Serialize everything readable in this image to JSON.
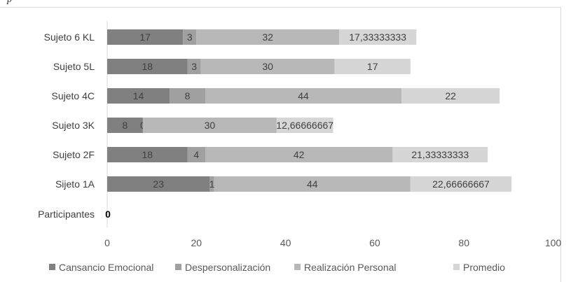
{
  "top_text": "p",
  "chart_data": {
    "type": "bar",
    "orientation": "horizontal",
    "stacked": true,
    "categories": [
      "Sijeto 1A",
      "Sujeto 2F",
      "Sujeto 3K",
      "Sujeto 4C",
      "Sujeto 5L",
      "Sujeto 6 KL",
      "Participantes"
    ],
    "series": [
      {
        "name": "Cansancio Emocional",
        "color": "#808080",
        "values": [
          23,
          18,
          8,
          14,
          18,
          17,
          0
        ],
        "labels": [
          "23",
          "18",
          "8",
          "14",
          "18",
          "17",
          "0"
        ]
      },
      {
        "name": "Despersonalización",
        "color": "#a0a0a0",
        "values": [
          1,
          4,
          0,
          8,
          3,
          3,
          0
        ],
        "labels": [
          "1",
          "4",
          "0",
          "8",
          "3",
          "3",
          ""
        ]
      },
      {
        "name": "Realización Personal",
        "color": "#b8b8b8",
        "values": [
          44,
          42,
          30,
          44,
          30,
          32,
          0
        ],
        "labels": [
          "44",
          "42",
          "30",
          "44",
          "30",
          "32",
          ""
        ]
      },
      {
        "name": "Promedio",
        "color": "#d6d6d6",
        "values": [
          22.66666667,
          21.33333333,
          12.66666667,
          22,
          17,
          17.33333333,
          0
        ],
        "labels": [
          "22,66666667",
          "21,33333333",
          "12,66666667",
          "22",
          "17",
          "17,33333333",
          ""
        ]
      }
    ],
    "xlim": [
      0,
      100
    ],
    "xticks": [
      "0",
      "20",
      "40",
      "60",
      "80",
      "100"
    ],
    "title": "",
    "xlabel": "",
    "ylabel": "",
    "grid": false,
    "legend_position": "bottom"
  }
}
